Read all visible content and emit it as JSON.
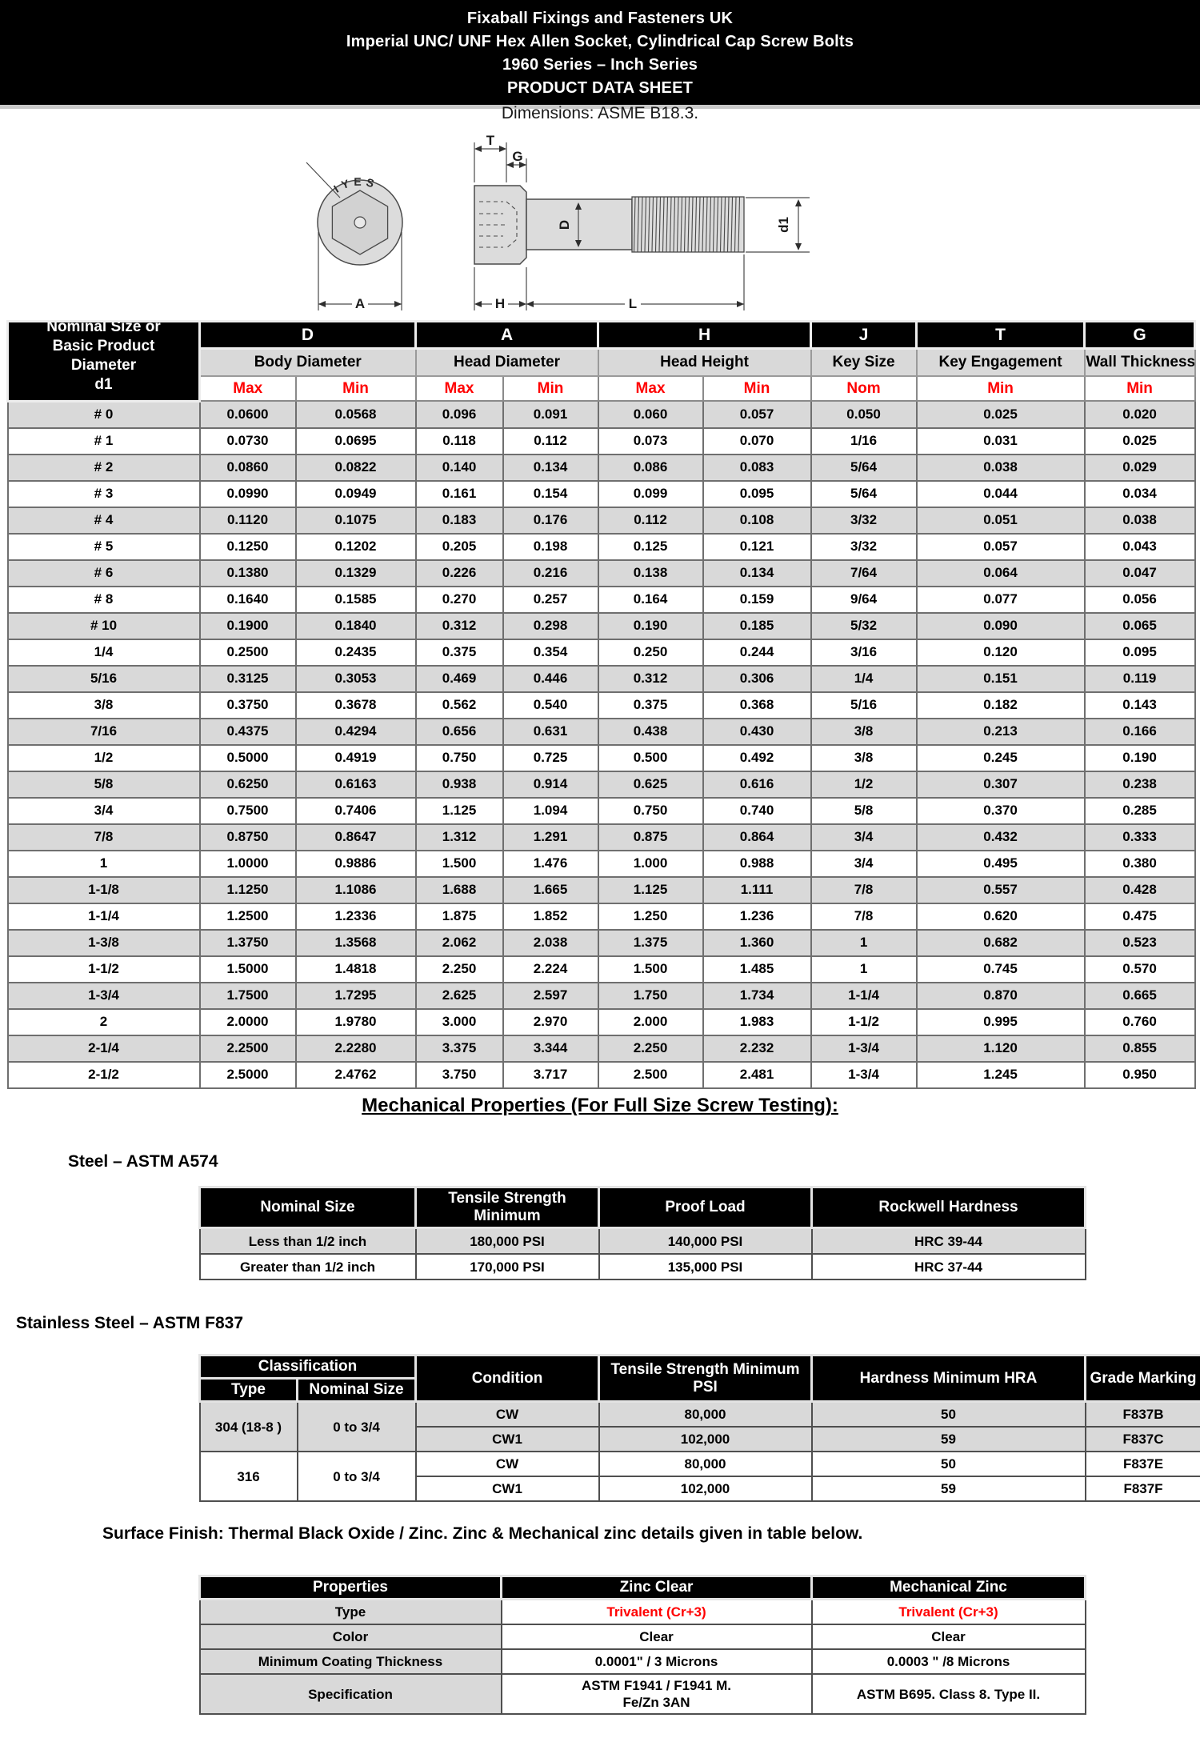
{
  "banner": {
    "line1": "Fixaball Fixings and Fasteners UK",
    "line2": "Imperial UNC/ UNF Hex Allen Socket, Cylindrical Cap Screw Bolts",
    "line3": "1960 Series – Inch Series",
    "line4": "PRODUCT DATA SHEET"
  },
  "dimensions_note": "Dimensions: ASME B18.3.",
  "drawing": {
    "head_marking": "IYES",
    "labels": {
      "A": "A",
      "T": "T",
      "G": "G",
      "D": "D",
      "d1": "d1",
      "H": "H",
      "L": "L"
    }
  },
  "colors": {
    "accent_red": "#ff0000",
    "row_gray": "#d9d9d9",
    "header_black": "#000000"
  },
  "dimension_table": {
    "corner_header": [
      "Nominal Size or",
      "Basic Product",
      "Diameter",
      "d1"
    ],
    "groups": [
      {
        "letter": "D",
        "name": "Body Diameter",
        "subs": [
          "Max",
          "Min"
        ]
      },
      {
        "letter": "A",
        "name": "Head Diameter",
        "subs": [
          "Max",
          "Min"
        ]
      },
      {
        "letter": "H",
        "name": "Head Height",
        "subs": [
          "Max",
          "Min"
        ]
      },
      {
        "letter": "J",
        "name": "Key Size",
        "subs": [
          "Nom"
        ]
      },
      {
        "letter": "T",
        "name": "Key Engagement",
        "subs": [
          "Min"
        ]
      },
      {
        "letter": "G",
        "name": "Wall Thickness",
        "subs": [
          "Min"
        ]
      }
    ],
    "rows": [
      [
        "# 0",
        "0.0600",
        "0.0568",
        "0.096",
        "0.091",
        "0.060",
        "0.057",
        "0.050",
        "0.025",
        "0.020"
      ],
      [
        "# 1",
        "0.0730",
        "0.0695",
        "0.118",
        "0.112",
        "0.073",
        "0.070",
        "1/16",
        "0.031",
        "0.025"
      ],
      [
        "# 2",
        "0.0860",
        "0.0822",
        "0.140",
        "0.134",
        "0.086",
        "0.083",
        "5/64",
        "0.038",
        "0.029"
      ],
      [
        "# 3",
        "0.0990",
        "0.0949",
        "0.161",
        "0.154",
        "0.099",
        "0.095",
        "5/64",
        "0.044",
        "0.034"
      ],
      [
        "# 4",
        "0.1120",
        "0.1075",
        "0.183",
        "0.176",
        "0.112",
        "0.108",
        "3/32",
        "0.051",
        "0.038"
      ],
      [
        "# 5",
        "0.1250",
        "0.1202",
        "0.205",
        "0.198",
        "0.125",
        "0.121",
        "3/32",
        "0.057",
        "0.043"
      ],
      [
        "# 6",
        "0.1380",
        "0.1329",
        "0.226",
        "0.216",
        "0.138",
        "0.134",
        "7/64",
        "0.064",
        "0.047"
      ],
      [
        "# 8",
        "0.1640",
        "0.1585",
        "0.270",
        "0.257",
        "0.164",
        "0.159",
        "9/64",
        "0.077",
        "0.056"
      ],
      [
        "# 10",
        "0.1900",
        "0.1840",
        "0.312",
        "0.298",
        "0.190",
        "0.185",
        "5/32",
        "0.090",
        "0.065"
      ],
      [
        "1/4",
        "0.2500",
        "0.2435",
        "0.375",
        "0.354",
        "0.250",
        "0.244",
        "3/16",
        "0.120",
        "0.095"
      ],
      [
        "5/16",
        "0.3125",
        "0.3053",
        "0.469",
        "0.446",
        "0.312",
        "0.306",
        "1/4",
        "0.151",
        "0.119"
      ],
      [
        "3/8",
        "0.3750",
        "0.3678",
        "0.562",
        "0.540",
        "0.375",
        "0.368",
        "5/16",
        "0.182",
        "0.143"
      ],
      [
        "7/16",
        "0.4375",
        "0.4294",
        "0.656",
        "0.631",
        "0.438",
        "0.430",
        "3/8",
        "0.213",
        "0.166"
      ],
      [
        "1/2",
        "0.5000",
        "0.4919",
        "0.750",
        "0.725",
        "0.500",
        "0.492",
        "3/8",
        "0.245",
        "0.190"
      ],
      [
        "5/8",
        "0.6250",
        "0.6163",
        "0.938",
        "0.914",
        "0.625",
        "0.616",
        "1/2",
        "0.307",
        "0.238"
      ],
      [
        "3/4",
        "0.7500",
        "0.7406",
        "1.125",
        "1.094",
        "0.750",
        "0.740",
        "5/8",
        "0.370",
        "0.285"
      ],
      [
        "7/8",
        "0.8750",
        "0.8647",
        "1.312",
        "1.291",
        "0.875",
        "0.864",
        "3/4",
        "0.432",
        "0.333"
      ],
      [
        "1",
        "1.0000",
        "0.9886",
        "1.500",
        "1.476",
        "1.000",
        "0.988",
        "3/4",
        "0.495",
        "0.380"
      ],
      [
        "1-1/8",
        "1.1250",
        "1.1086",
        "1.688",
        "1.665",
        "1.125",
        "1.111",
        "7/8",
        "0.557",
        "0.428"
      ],
      [
        "1-1/4",
        "1.2500",
        "1.2336",
        "1.875",
        "1.852",
        "1.250",
        "1.236",
        "7/8",
        "0.620",
        "0.475"
      ],
      [
        "1-3/8",
        "1.3750",
        "1.3568",
        "2.062",
        "2.038",
        "1.375",
        "1.360",
        "1",
        "0.682",
        "0.523"
      ],
      [
        "1-1/2",
        "1.5000",
        "1.4818",
        "2.250",
        "2.224",
        "1.500",
        "1.485",
        "1",
        "0.745",
        "0.570"
      ],
      [
        "1-3/4",
        "1.7500",
        "1.7295",
        "2.625",
        "2.597",
        "1.750",
        "1.734",
        "1-1/4",
        "0.870",
        "0.665"
      ],
      [
        "2",
        "2.0000",
        "1.9780",
        "3.000",
        "2.970",
        "2.000",
        "1.983",
        "1-1/2",
        "0.995",
        "0.760"
      ],
      [
        "2-1/4",
        "2.2500",
        "2.2280",
        "3.375",
        "3.344",
        "2.250",
        "2.232",
        "1-3/4",
        "1.120",
        "0.855"
      ],
      [
        "2-1/2",
        "2.5000",
        "2.4762",
        "3.750",
        "3.717",
        "2.500",
        "2.481",
        "1-3/4",
        "1.245",
        "0.950"
      ]
    ]
  },
  "mechanical": {
    "heading": "Mechanical Properties (For Full Size Screw Testing):",
    "steel": {
      "heading": "Steel – ASTM A574",
      "headers": [
        "Nominal Size",
        "Tensile Strength Minimum",
        "Proof Load",
        "Rockwell Hardness"
      ],
      "rows": [
        [
          "Less than 1/2 inch",
          "180,000 PSI",
          "140,000 PSI",
          "HRC 39-44"
        ],
        [
          "Greater than 1/2 inch",
          "170,000 PSI",
          "135,000 PSI",
          "HRC 37-44"
        ]
      ]
    },
    "stainless": {
      "heading": "Stainless Steel – ASTM F837",
      "headers": {
        "classification": "Classification",
        "type": "Type",
        "nominal_size": "Nominal Size",
        "condition": "Condition",
        "tensile": "Tensile Strength Minimum PSI",
        "hardness": "Hardness Minimum HRA",
        "grade": "Grade Marking"
      },
      "blocks": [
        {
          "type": "304 (18-8 )",
          "nominal": "0 to 3/4",
          "shade": "gray",
          "conditions": [
            [
              "CW",
              "80,000",
              "50",
              "F837B"
            ],
            [
              "CW1",
              "102,000",
              "59",
              "F837C"
            ]
          ]
        },
        {
          "type": "316",
          "nominal": "0 to 3/4",
          "shade": "white",
          "conditions": [
            [
              "CW",
              "80,000",
              "50",
              "F837E"
            ],
            [
              "CW1",
              "102,000",
              "59",
              "F837F"
            ]
          ]
        }
      ]
    }
  },
  "surface": {
    "note": "Surface Finish: Thermal Black Oxide / Zinc. Zinc & Mechanical zinc details given in table below.",
    "headers": [
      "Properties",
      "Zinc Clear",
      "Mechanical Zinc"
    ],
    "rows": [
      {
        "label": "Type",
        "values": [
          "Trivalent (Cr+3)",
          "Trivalent (Cr+3)"
        ],
        "red": true,
        "tall": false
      },
      {
        "label": "Color",
        "values": [
          "Clear",
          "Clear"
        ],
        "red": false,
        "tall": false
      },
      {
        "label": "Minimum Coating Thickness",
        "values": [
          "0.0001\" / 3 Microns",
          "0.0003 \" /8 Microns"
        ],
        "red": false,
        "tall": false
      },
      {
        "label": "Specification",
        "values": [
          "ASTM F1941 / F1941 M.\nFe/Zn 3AN",
          "ASTM B695. Class 8. Type II."
        ],
        "red": false,
        "tall": true
      }
    ]
  }
}
